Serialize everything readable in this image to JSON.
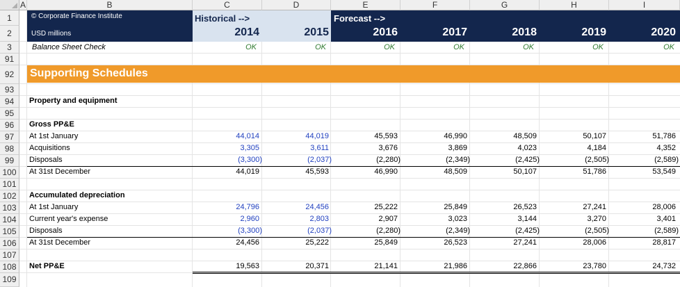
{
  "columns": [
    "A",
    "B",
    "C",
    "D",
    "E",
    "F",
    "G",
    "H",
    "I"
  ],
  "rows": [
    "1",
    "2",
    "3",
    "91",
    "92",
    "93",
    "94",
    "95",
    "96",
    "97",
    "98",
    "99",
    "100",
    "101",
    "102",
    "103",
    "104",
    "105",
    "106",
    "107",
    "108",
    "109"
  ],
  "header": {
    "copyright": "© Corporate Finance Institute",
    "units": "USD millions",
    "historical": "Historical -->",
    "forecast": "Forecast -->",
    "years": [
      "2014",
      "2015",
      "2016",
      "2017",
      "2018",
      "2019",
      "2020"
    ]
  },
  "check": {
    "label": "Balance Sheet Check",
    "values": [
      "OK",
      "OK",
      "OK",
      "OK",
      "OK",
      "OK",
      "OK"
    ]
  },
  "section_title": "Supporting Schedules",
  "ppe_title": "Property and equipment",
  "gross": {
    "title": "Gross PP&E",
    "rows": [
      {
        "label": "At 1st January",
        "values": [
          "44,014",
          "44,019",
          "45,593",
          "46,990",
          "48,509",
          "50,107",
          "51,786"
        ]
      },
      {
        "label": "Acquisitions",
        "values": [
          "3,305",
          "3,611",
          "3,676",
          "3,869",
          "4,023",
          "4,184",
          "4,352"
        ]
      },
      {
        "label": "Disposals",
        "values": [
          "(3,300)",
          "(2,037)",
          "(2,280)",
          "(2,349)",
          "(2,425)",
          "(2,505)",
          "(2,589)"
        ]
      },
      {
        "label": "At 31st December",
        "values": [
          "44,019",
          "45,593",
          "46,990",
          "48,509",
          "50,107",
          "51,786",
          "53,549"
        ]
      }
    ]
  },
  "accum": {
    "title": "Accumulated depreciation",
    "rows": [
      {
        "label": "At 1st January",
        "values": [
          "24,796",
          "24,456",
          "25,222",
          "25,849",
          "26,523",
          "27,241",
          "28,006"
        ]
      },
      {
        "label": "Current year's expense",
        "values": [
          "2,960",
          "2,803",
          "2,907",
          "3,023",
          "3,144",
          "3,270",
          "3,401"
        ]
      },
      {
        "label": "Disposals",
        "values": [
          "(3,300)",
          "(2,037)",
          "(2,280)",
          "(2,349)",
          "(2,425)",
          "(2,505)",
          "(2,589)"
        ]
      },
      {
        "label": "At 31st December",
        "values": [
          "24,456",
          "25,222",
          "25,849",
          "26,523",
          "27,241",
          "28,006",
          "28,817"
        ]
      }
    ]
  },
  "net": {
    "label": "Net PP&E",
    "values": [
      "19,563",
      "20,371",
      "21,141",
      "21,986",
      "22,866",
      "23,780",
      "24,732"
    ]
  },
  "colors": {
    "navy": "#13264d",
    "light_header": "#d9e3ef",
    "orange": "#f09a2a",
    "input_blue": "#1f3fbf",
    "ok_green": "#2f7a2f"
  }
}
